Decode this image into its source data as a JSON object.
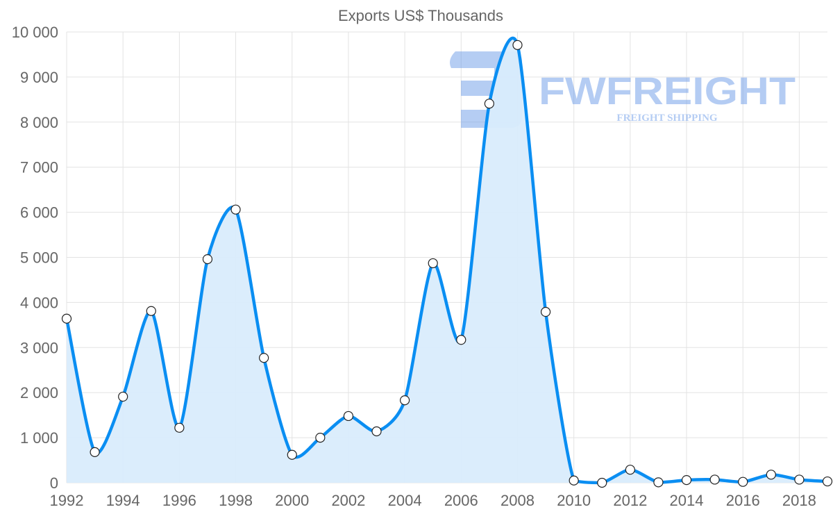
{
  "chart_data": {
    "type": "area",
    "title": "Exports US$ Thousands",
    "xlabel": "",
    "ylabel": "",
    "x": [
      1992,
      1993,
      1994,
      1995,
      1996,
      1997,
      1998,
      1999,
      2000,
      2001,
      2002,
      2003,
      2004,
      2005,
      2006,
      2007,
      2008,
      2009,
      2010,
      2011,
      2012,
      2013,
      2014,
      2015,
      2016,
      2017,
      2018,
      2019
    ],
    "series": [
      {
        "name": "Exports US$ Thousands",
        "values": [
          3640,
          680,
          1910,
          3810,
          1220,
          4960,
          6060,
          2770,
          620,
          1000,
          1480,
          1140,
          1830,
          4870,
          3170,
          8410,
          9710,
          3790,
          50,
          0,
          290,
          10,
          60,
          70,
          20,
          180,
          70,
          30
        ]
      }
    ],
    "ylim": [
      0,
      10000
    ],
    "xlim": [
      1992,
      2019
    ],
    "y_ticks": [
      "0",
      "1 000",
      "2 000",
      "3 000",
      "4 000",
      "5 000",
      "6 000",
      "7 000",
      "8 000",
      "9 000",
      "10 000"
    ],
    "x_ticks": [
      "1992",
      "1994",
      "1996",
      "1998",
      "2000",
      "2002",
      "2004",
      "2006",
      "2008",
      "2010",
      "2012",
      "2014",
      "2016",
      "2018"
    ],
    "grid": true,
    "line_color": "#0a8ef2",
    "fill_color": "#d9ecfc"
  },
  "watermark": {
    "brand": "FWFREIGHT",
    "tagline": "FREIGHT SHIPPING",
    "color": "#6b9be8"
  }
}
